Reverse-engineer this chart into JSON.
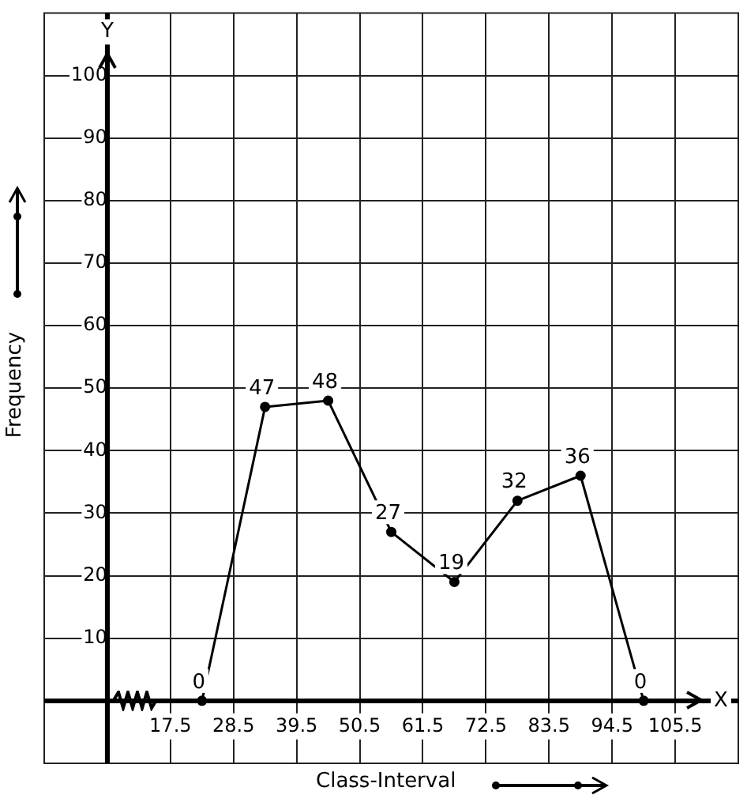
{
  "chart_data": {
    "type": "line",
    "xlabel": "Class-Interval",
    "ylabel": "Frequency",
    "annotations": [
      "X",
      "Y"
    ],
    "x": [
      23,
      34,
      45,
      56,
      67,
      78,
      89,
      100
    ],
    "series": [
      {
        "color": "#000000",
        "values": [
          0,
          47,
          48,
          27,
          19,
          32,
          36,
          0
        ]
      }
    ],
    "xlim": [
      -4.5,
      116.5
    ],
    "ylim": [
      -10,
      110
    ],
    "xticks": [
      {
        "value": 6.5,
        "label": null
      },
      17.5,
      28.5,
      39.5,
      50.5,
      61.5,
      72.5,
      83.5,
      94.5,
      105.5
    ],
    "yticks": [
      {
        "value": 0,
        "label": null
      },
      10,
      20,
      30,
      40,
      50,
      60,
      70,
      80,
      90,
      100
    ],
    "grid": true,
    "marker": "circle",
    "line_style": "solid",
    "data_labels": true,
    "legend": false
  }
}
